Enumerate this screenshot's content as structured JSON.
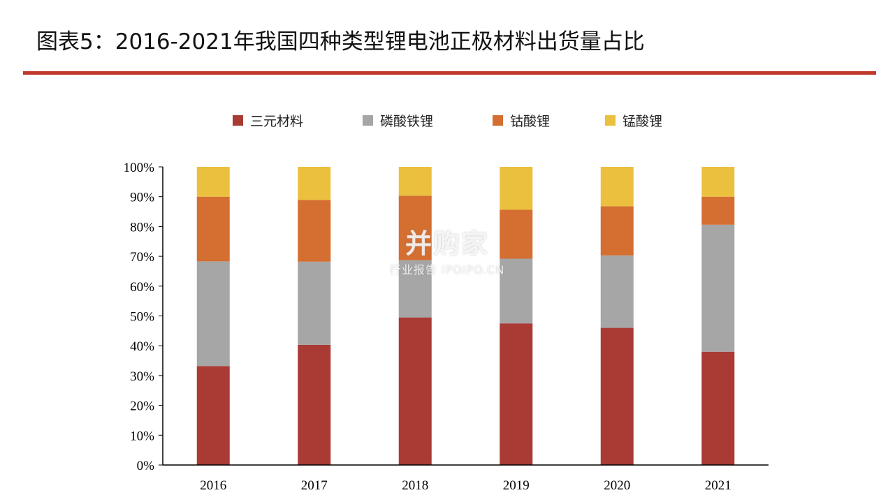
{
  "header": {
    "title": "图表5：2016-2021年我国四种类型锂电池正极材料出货量占比"
  },
  "watermark": {
    "brand": "并购家",
    "sub": "行业报告 IPOIPO.CN"
  },
  "chart_data": {
    "type": "bar",
    "stacked": true,
    "categories": [
      "2016",
      "2017",
      "2018",
      "2019",
      "2020",
      "2021"
    ],
    "series": [
      {
        "name": "三元材料",
        "color": "#a93a34",
        "values": [
          33.2,
          40.3,
          49.5,
          47.5,
          46.0,
          38.0
        ]
      },
      {
        "name": "磷酸铁锂",
        "color": "#a6a6a6",
        "values": [
          35.1,
          27.9,
          19.2,
          21.7,
          24.3,
          42.6
        ]
      },
      {
        "name": "钴酸锂",
        "color": "#d46e31",
        "values": [
          21.7,
          20.7,
          21.6,
          16.4,
          16.5,
          9.4
        ]
      },
      {
        "name": "锰酸锂",
        "color": "#ebc03f",
        "values": [
          10.0,
          11.1,
          9.7,
          14.4,
          13.2,
          10.0
        ]
      }
    ],
    "yticks": [
      "0%",
      "10%",
      "20%",
      "30%",
      "40%",
      "50%",
      "60%",
      "70%",
      "80%",
      "90%",
      "100%"
    ],
    "ylim": [
      0,
      100
    ],
    "legend_position": "top",
    "grid": false
  }
}
